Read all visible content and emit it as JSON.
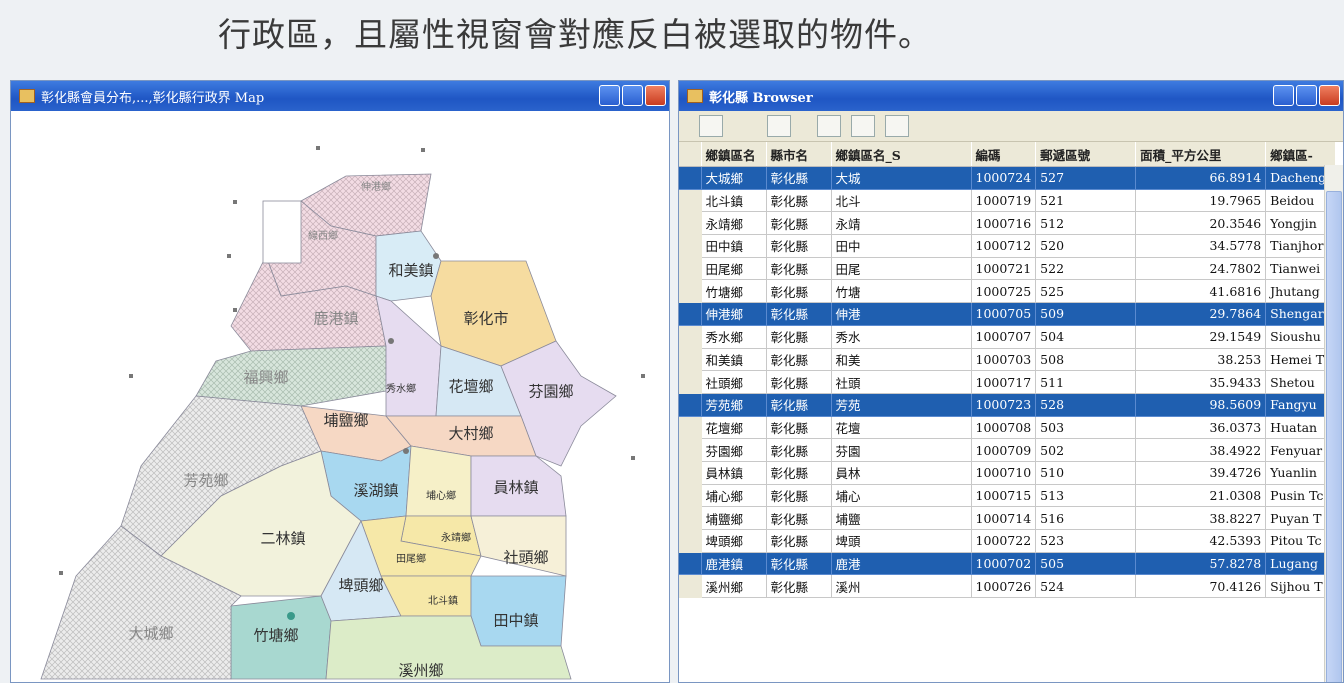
{
  "header": {
    "text": "行政區，且屬性視窗會對應反白被選取的物件。"
  },
  "map_window": {
    "title": "彰化縣會員分布,...,彰化縣行政界 Map",
    "labels": [
      "伸港鄉",
      "線西鄉",
      "和美鎮",
      "鹿港鎮",
      "彰化市",
      "福興鄉",
      "秀水鄉",
      "花壇鄉",
      "芬園鄉",
      "埔鹽鄉",
      "大村鄉",
      "芳苑鄉",
      "溪湖鎮",
      "埔心鄉",
      "員林鎮",
      "二林鎮",
      "永靖鄉",
      "田尾鄉",
      "社頭鄉",
      "埤頭鄉",
      "北斗鎮",
      "竹塘鄉",
      "田中鎮",
      "大城鄉",
      "溪州鄉"
    ]
  },
  "browser_window": {
    "title": "彰化縣 Browser",
    "table": {
      "columns": [
        "鄉鎮區名",
        "縣市名",
        "鄉鎮區名_S",
        "編碼",
        "郵遞區號",
        "面積_平方公里",
        "鄉鎮區-"
      ],
      "rows": [
        {
          "cells": [
            "大城鄉",
            "彰化縣",
            "大城",
            "1000724",
            "527",
            "66.8914",
            "Dacheng"
          ],
          "selected": true
        },
        {
          "cells": [
            "北斗鎮",
            "彰化縣",
            "北斗",
            "1000719",
            "521",
            "19.7965",
            "Beidou"
          ],
          "selected": false
        },
        {
          "cells": [
            "永靖鄉",
            "彰化縣",
            "永靖",
            "1000716",
            "512",
            "20.3546",
            "Yongjin"
          ],
          "selected": false
        },
        {
          "cells": [
            "田中鎮",
            "彰化縣",
            "田中",
            "1000712",
            "520",
            "34.5778",
            "Tianjhor"
          ],
          "selected": false
        },
        {
          "cells": [
            "田尾鄉",
            "彰化縣",
            "田尾",
            "1000721",
            "522",
            "24.7802",
            "Tianwei"
          ],
          "selected": false
        },
        {
          "cells": [
            "竹塘鄉",
            "彰化縣",
            "竹塘",
            "1000725",
            "525",
            "41.6816",
            "Jhutang"
          ],
          "selected": false
        },
        {
          "cells": [
            "伸港鄉",
            "彰化縣",
            "伸港",
            "1000705",
            "509",
            "29.7864",
            "Shengar"
          ],
          "selected": true
        },
        {
          "cells": [
            "秀水鄉",
            "彰化縣",
            "秀水",
            "1000707",
            "504",
            "29.1549",
            "Sioushu"
          ],
          "selected": false
        },
        {
          "cells": [
            "和美鎮",
            "彰化縣",
            "和美",
            "1000703",
            "508",
            "38.253",
            "Hemei T"
          ],
          "selected": false
        },
        {
          "cells": [
            "社頭鄉",
            "彰化縣",
            "社頭",
            "1000717",
            "511",
            "35.9433",
            "Shetou"
          ],
          "selected": false
        },
        {
          "cells": [
            "芳苑鄉",
            "彰化縣",
            "芳苑",
            "1000723",
            "528",
            "98.5609",
            "Fangyu"
          ],
          "selected": true
        },
        {
          "cells": [
            "花壇鄉",
            "彰化縣",
            "花壇",
            "1000708",
            "503",
            "36.0373",
            "Huatan"
          ],
          "selected": false
        },
        {
          "cells": [
            "芬園鄉",
            "彰化縣",
            "芬園",
            "1000709",
            "502",
            "38.4922",
            "Fenyuar"
          ],
          "selected": false
        },
        {
          "cells": [
            "員林鎮",
            "彰化縣",
            "員林",
            "1000710",
            "510",
            "39.4726",
            "Yuanlin"
          ],
          "selected": false
        },
        {
          "cells": [
            "埔心鄉",
            "彰化縣",
            "埔心",
            "1000715",
            "513",
            "21.0308",
            "Pusin Tc"
          ],
          "selected": false
        },
        {
          "cells": [
            "埔鹽鄉",
            "彰化縣",
            "埔鹽",
            "1000714",
            "516",
            "38.8227",
            "Puyan T"
          ],
          "selected": false
        },
        {
          "cells": [
            "埤頭鄉",
            "彰化縣",
            "埤頭",
            "1000722",
            "523",
            "42.5393",
            "Pitou Tc"
          ],
          "selected": false
        },
        {
          "cells": [
            "鹿港鎮",
            "彰化縣",
            "鹿港",
            "1000702",
            "505",
            "57.8278",
            "Lugang"
          ],
          "selected": true
        },
        {
          "cells": [
            "溪州鄉",
            "彰化縣",
            "溪州",
            "1000726",
            "524",
            "70.4126",
            "Sijhou T"
          ],
          "selected": false
        }
      ]
    }
  }
}
